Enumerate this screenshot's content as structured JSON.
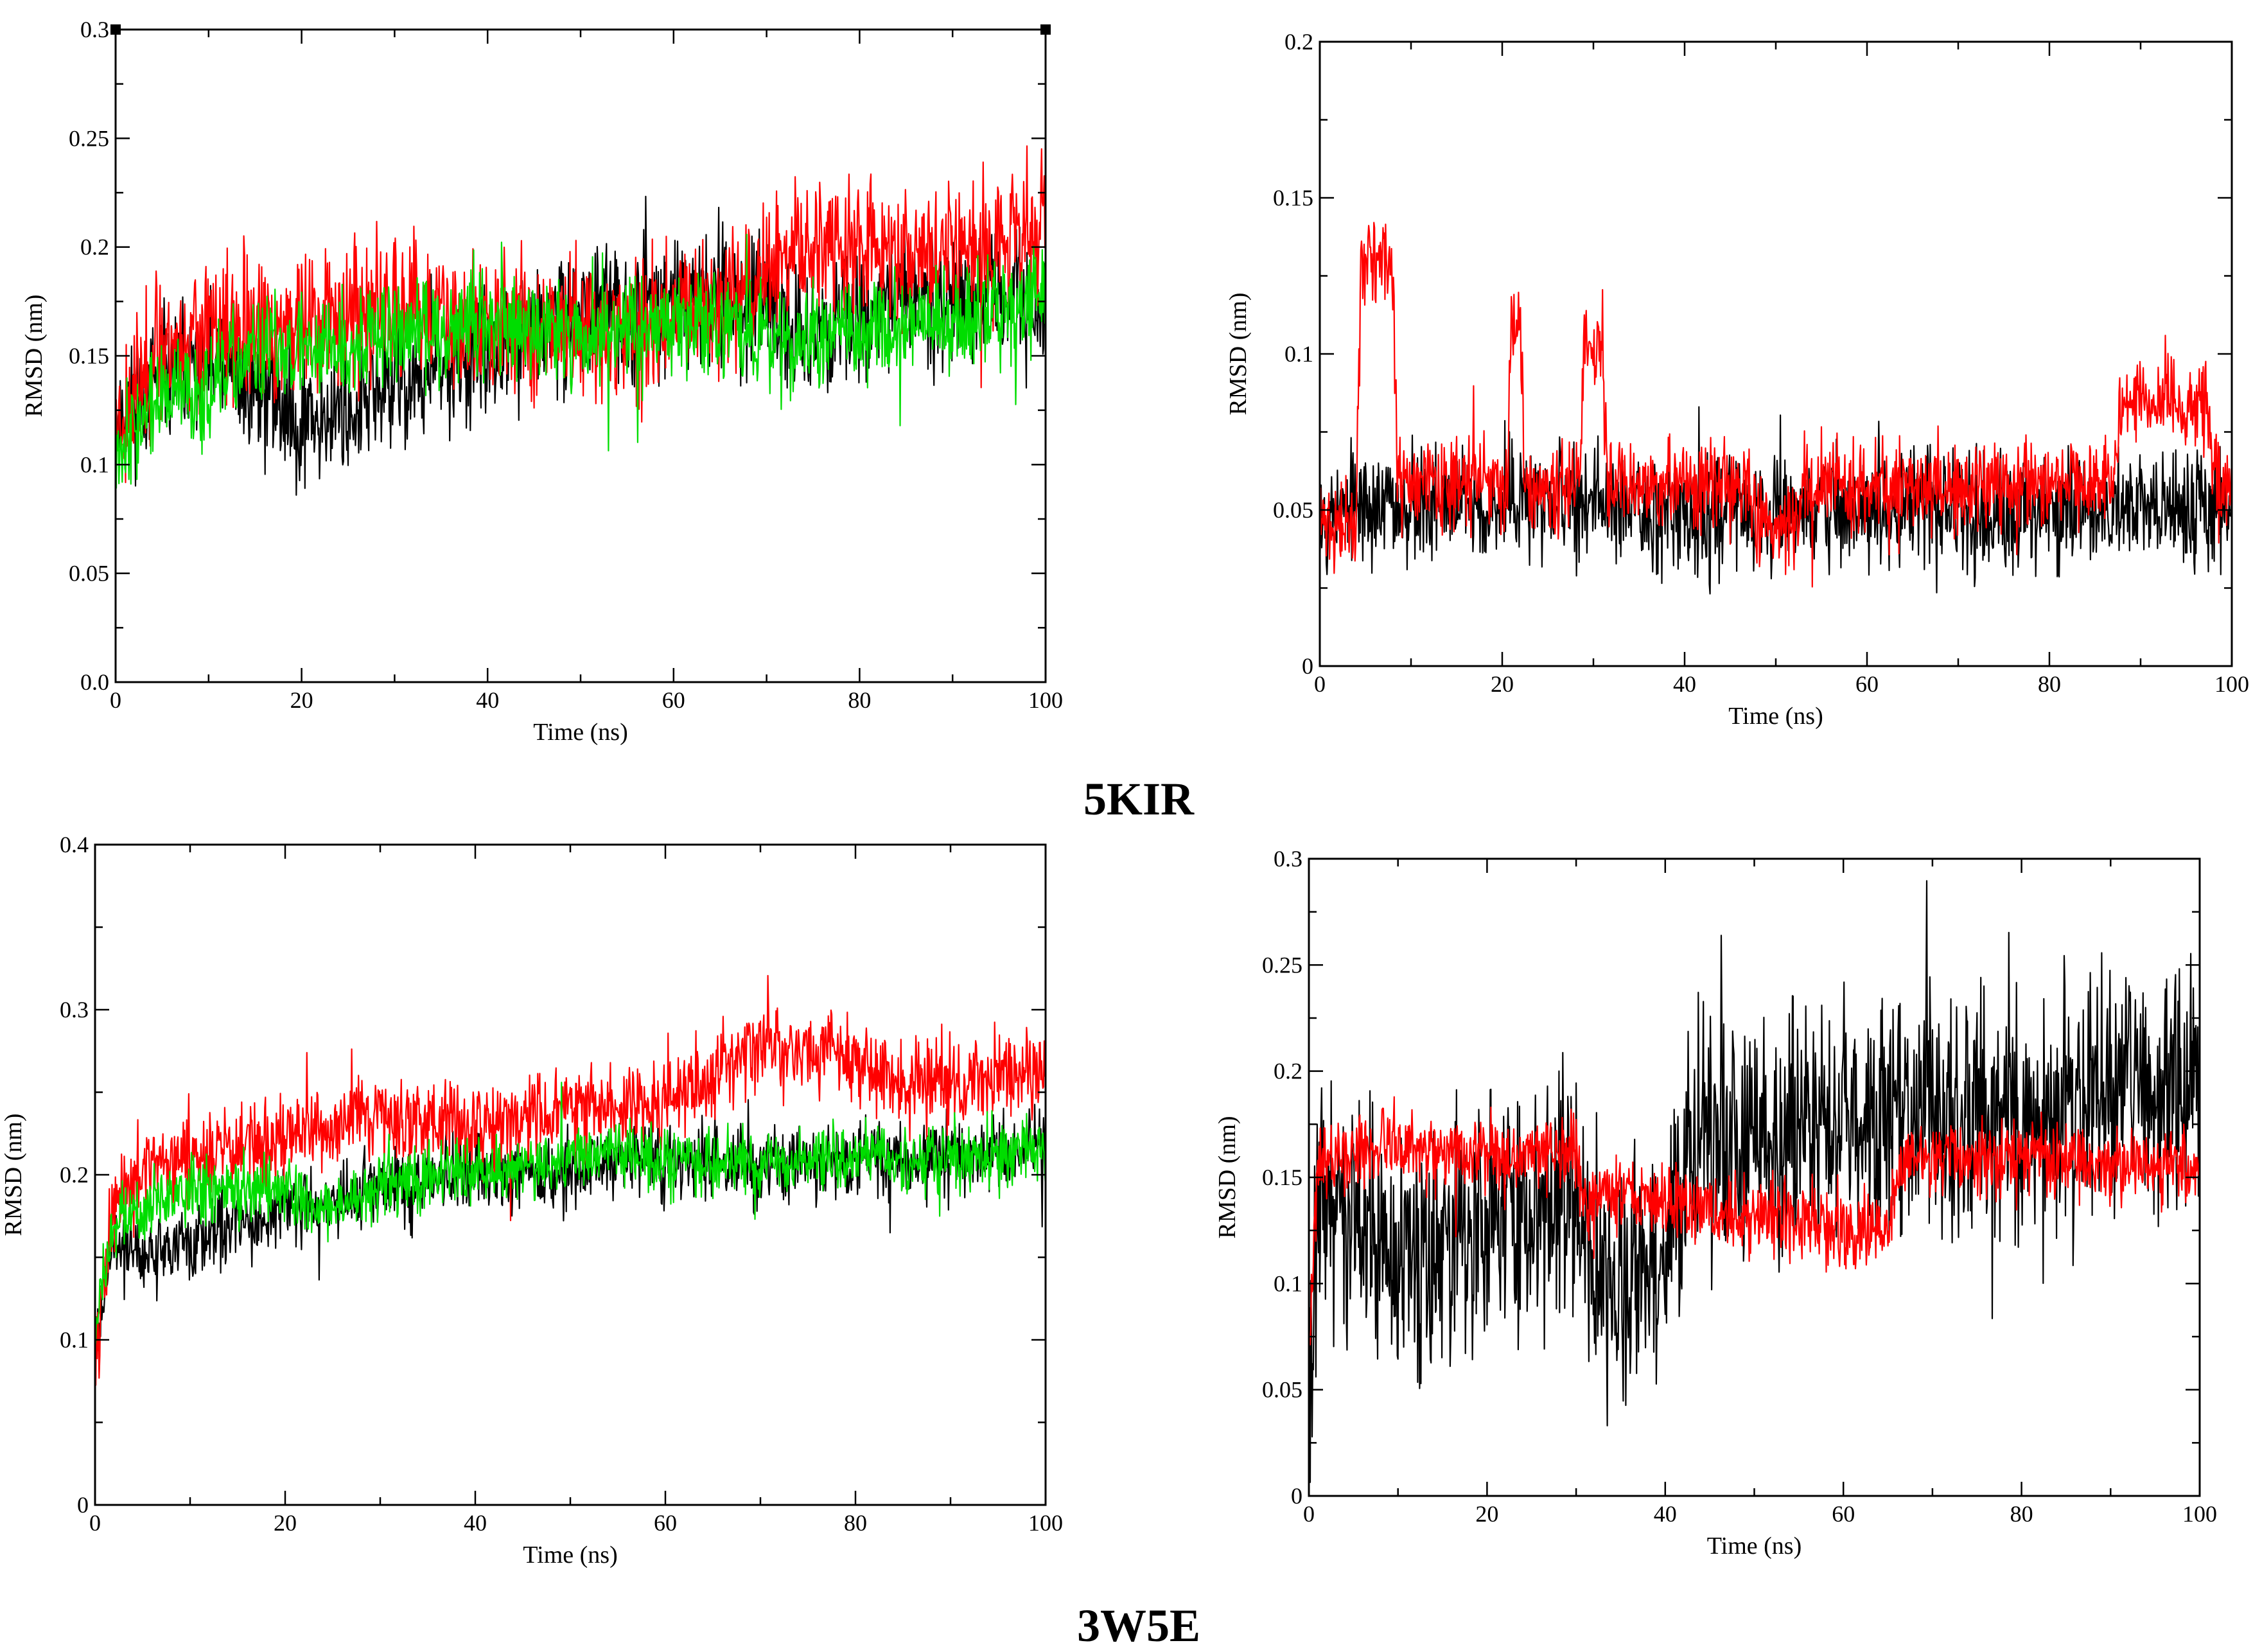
{
  "captions": {
    "top": "5KIR",
    "bottom": "3W5E"
  },
  "colors": {
    "black": "#000000",
    "red": "#ff0000",
    "green": "#00dd00"
  },
  "chart_data": [
    {
      "id": "top-left",
      "type": "line",
      "xlabel": "Time (ns)",
      "ylabel": "RMSD (nm)",
      "xlim": [
        0,
        100
      ],
      "ylim": [
        0,
        0.3
      ],
      "xticks": [
        0,
        20,
        40,
        60,
        80,
        100
      ],
      "xtick_labels": [
        "0",
        "20",
        "40",
        "60",
        "80",
        "100"
      ],
      "yticks": [
        0,
        0.05,
        0.1,
        0.15,
        0.2,
        0.25,
        0.3
      ],
      "ytick_labels": [
        "0.0",
        "0.05",
        "0.1",
        "0.15",
        "0.2",
        "0.25",
        "0.3"
      ],
      "series": [
        {
          "name": "black",
          "color": "#000000",
          "noise": 0.014,
          "seed": 11,
          "x": [
            0,
            5,
            10,
            15,
            20,
            25,
            30,
            40,
            50,
            60,
            65,
            70,
            75,
            80,
            85,
            90,
            95,
            100
          ],
          "y": [
            0.12,
            0.14,
            0.145,
            0.135,
            0.12,
            0.125,
            0.135,
            0.15,
            0.17,
            0.175,
            0.18,
            0.17,
            0.16,
            0.17,
            0.175,
            0.18,
            0.175,
            0.17
          ]
        },
        {
          "name": "red",
          "color": "#ff0000",
          "noise": 0.016,
          "seed": 23,
          "x": [
            0,
            5,
            10,
            15,
            20,
            25,
            30,
            40,
            50,
            55,
            60,
            65,
            70,
            75,
            80,
            85,
            90,
            95,
            100
          ],
          "y": [
            0.12,
            0.155,
            0.16,
            0.16,
            0.165,
            0.17,
            0.17,
            0.165,
            0.165,
            0.16,
            0.165,
            0.175,
            0.19,
            0.2,
            0.2,
            0.2,
            0.195,
            0.205,
            0.21
          ]
        },
        {
          "name": "green",
          "color": "#00dd00",
          "noise": 0.012,
          "seed": 37,
          "x": [
            0,
            5,
            10,
            15,
            20,
            25,
            30,
            40,
            50,
            60,
            65,
            70,
            75,
            80,
            85,
            90,
            95,
            100
          ],
          "y": [
            0.11,
            0.13,
            0.135,
            0.15,
            0.155,
            0.155,
            0.16,
            0.165,
            0.16,
            0.165,
            0.165,
            0.16,
            0.155,
            0.16,
            0.165,
            0.165,
            0.17,
            0.18
          ]
        }
      ]
    },
    {
      "id": "top-right",
      "type": "line",
      "xlabel": "Time (ns)",
      "ylabel": "RMSD (nm)",
      "xlim": [
        0,
        100
      ],
      "ylim": [
        0,
        0.2
      ],
      "xticks": [
        0,
        20,
        40,
        60,
        80,
        100
      ],
      "xtick_labels": [
        "0",
        "20",
        "40",
        "60",
        "80",
        "100"
      ],
      "yticks": [
        0,
        0.05,
        0.1,
        0.15,
        0.2
      ],
      "ytick_labels": [
        "0",
        "0.05",
        "0.1",
        "0.15",
        "0.2"
      ],
      "series": [
        {
          "name": "black",
          "color": "#000000",
          "noise": 0.009,
          "seed": 53,
          "x": [
            0,
            10,
            20,
            30,
            40,
            50,
            60,
            70,
            80,
            90,
            100
          ],
          "y": [
            0.05,
            0.052,
            0.052,
            0.052,
            0.05,
            0.05,
            0.05,
            0.05,
            0.05,
            0.05,
            0.05
          ]
        },
        {
          "name": "red",
          "color": "#ff0000",
          "noise": 0.007,
          "seed": 71,
          "x": [
            0,
            4,
            4.5,
            8,
            8.5,
            20.5,
            21,
            22,
            22.5,
            28.5,
            29,
            31,
            31.5,
            47,
            48,
            52,
            53,
            87,
            88,
            97,
            98,
            100
          ],
          "y": [
            0.045,
            0.045,
            0.13,
            0.13,
            0.058,
            0.058,
            0.11,
            0.11,
            0.058,
            0.058,
            0.1,
            0.1,
            0.058,
            0.058,
            0.045,
            0.045,
            0.058,
            0.058,
            0.085,
            0.085,
            0.06,
            0.06
          ]
        }
      ]
    },
    {
      "id": "bottom-left",
      "type": "line",
      "xlabel": "Time (ns)",
      "ylabel": "RMSD (nm)",
      "xlim": [
        0,
        100
      ],
      "ylim": [
        0,
        0.4
      ],
      "xticks": [
        0,
        20,
        40,
        60,
        80,
        100
      ],
      "xtick_labels": [
        "0",
        "20",
        "40",
        "60",
        "80",
        "100"
      ],
      "yticks": [
        0,
        0.1,
        0.2,
        0.3,
        0.4
      ],
      "ytick_labels": [
        "0",
        "0.1",
        "0.2",
        "0.3",
        "0.4"
      ],
      "series": [
        {
          "name": "black",
          "color": "#000000",
          "noise": 0.011,
          "seed": 89,
          "x": [
            0,
            2,
            5,
            10,
            20,
            30,
            40,
            50,
            55,
            60,
            70,
            80,
            90,
            100
          ],
          "y": [
            0.1,
            0.16,
            0.15,
            0.16,
            0.18,
            0.19,
            0.2,
            0.2,
            0.21,
            0.21,
            0.205,
            0.21,
            0.21,
            0.215
          ]
        },
        {
          "name": "red",
          "color": "#ff0000",
          "noise": 0.013,
          "seed": 97,
          "x": [
            0,
            2,
            5,
            10,
            20,
            30,
            40,
            50,
            60,
            65,
            70,
            75,
            80,
            85,
            90,
            100
          ],
          "y": [
            0.1,
            0.18,
            0.2,
            0.21,
            0.22,
            0.235,
            0.23,
            0.24,
            0.245,
            0.26,
            0.28,
            0.275,
            0.27,
            0.255,
            0.255,
            0.265
          ]
        },
        {
          "name": "green",
          "color": "#00dd00",
          "noise": 0.01,
          "seed": 103,
          "x": [
            0,
            2,
            5,
            10,
            20,
            25,
            30,
            40,
            50,
            55,
            60,
            70,
            80,
            90,
            100
          ],
          "y": [
            0.1,
            0.17,
            0.18,
            0.19,
            0.19,
            0.18,
            0.195,
            0.2,
            0.21,
            0.215,
            0.21,
            0.205,
            0.21,
            0.21,
            0.215
          ]
        }
      ]
    },
    {
      "id": "bottom-right",
      "type": "line",
      "xlabel": "Time (ns)",
      "ylabel": "RMSD (nm)",
      "xlim": [
        0,
        100
      ],
      "ylim": [
        0,
        0.3
      ],
      "xticks": [
        0,
        20,
        40,
        60,
        80,
        100
      ],
      "xtick_labels": [
        "0",
        "20",
        "40",
        "60",
        "80",
        "100"
      ],
      "yticks": [
        0,
        0.05,
        0.1,
        0.15,
        0.2,
        0.25,
        0.3
      ],
      "ytick_labels": [
        "0",
        "0.05",
        "0.1",
        "0.15",
        "0.2",
        "0.25",
        "0.3"
      ],
      "series": [
        {
          "name": "black",
          "color": "#000000",
          "noise": 0.028,
          "seed": 131,
          "x": [
            0,
            1,
            5,
            10,
            20,
            30,
            31,
            35,
            40,
            42,
            45,
            50,
            60,
            70,
            80,
            85,
            90,
            95,
            100
          ],
          "y": [
            0.05,
            0.14,
            0.13,
            0.11,
            0.13,
            0.135,
            0.11,
            0.1,
            0.11,
            0.16,
            0.17,
            0.165,
            0.18,
            0.18,
            0.18,
            0.18,
            0.195,
            0.18,
            0.2
          ]
        },
        {
          "name": "red",
          "color": "#ff0000",
          "noise": 0.009,
          "seed": 149,
          "x": [
            0,
            1,
            10,
            20,
            30,
            31,
            40,
            45,
            50,
            55,
            60,
            65,
            66,
            67,
            70,
            80,
            90,
            100
          ],
          "y": [
            0.07,
            0.16,
            0.165,
            0.16,
            0.16,
            0.14,
            0.14,
            0.135,
            0.13,
            0.13,
            0.125,
            0.125,
            0.15,
            0.16,
            0.16,
            0.158,
            0.157,
            0.157
          ]
        }
      ]
    }
  ]
}
